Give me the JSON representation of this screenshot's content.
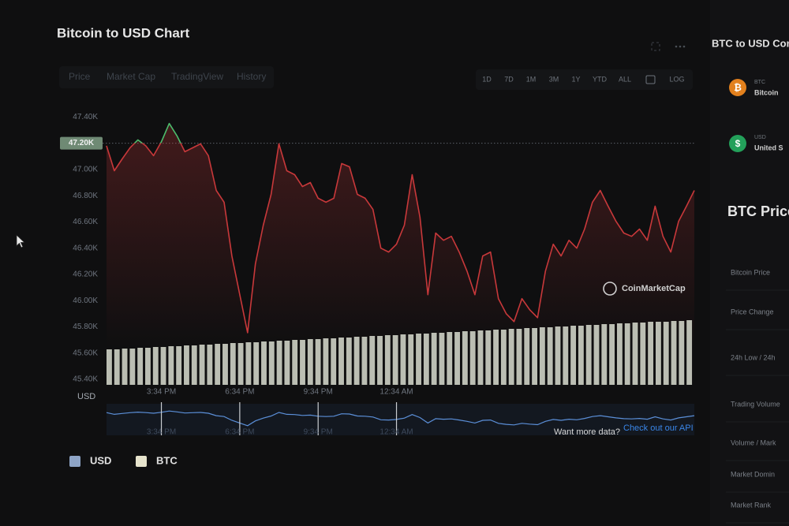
{
  "header": {
    "title": "Bitcoin to USD Chart"
  },
  "tabs": [
    "Price",
    "Market Cap",
    "TradingView",
    "History"
  ],
  "ranges": [
    "1D",
    "7D",
    "1M",
    "3M",
    "1Y",
    "YTD",
    "ALL",
    "LOG"
  ],
  "chart_data": {
    "type": "line",
    "ylabel": "USD",
    "watermark": "CoinMarketCap",
    "color": "#c8383a",
    "color_above": "#4cbc6c",
    "navigator_color": "#5b8fd8",
    "volume_color": "#d9ddd0",
    "reference": {
      "value": 47200,
      "label": "47.20K"
    },
    "ylim": [
      45400,
      47450
    ],
    "yticks": [
      {
        "value": 45400,
        "label": "45.40K"
      },
      {
        "value": 45600,
        "label": "45.60K"
      },
      {
        "value": 45800,
        "label": "45.80K"
      },
      {
        "value": 46000,
        "label": "46.00K"
      },
      {
        "value": 46200,
        "label": "46.20K"
      },
      {
        "value": 46400,
        "label": "46.40K"
      },
      {
        "value": 46600,
        "label": "46.60K"
      },
      {
        "value": 46800,
        "label": "46.80K"
      },
      {
        "value": 47000,
        "label": "47.00K"
      },
      {
        "value": 47400,
        "label": "47.40K"
      }
    ],
    "categories": [
      null,
      null,
      null,
      null,
      null,
      null,
      null,
      "3:34 PM",
      null,
      null,
      null,
      null,
      null,
      null,
      null,
      null,
      null,
      "6:34 PM",
      null,
      null,
      null,
      null,
      null,
      null,
      null,
      null,
      null,
      "9:34 PM",
      null,
      null,
      null,
      null,
      null,
      null,
      null,
      null,
      null,
      "12:34 AM",
      null,
      null,
      null,
      null,
      null,
      null,
      null,
      null,
      null,
      null,
      null,
      null,
      null,
      null,
      null,
      null,
      null,
      null,
      null,
      null,
      null,
      null,
      null,
      null,
      null,
      null,
      null,
      null,
      null,
      null,
      null,
      null,
      null,
      null,
      null,
      null,
      null,
      null
    ],
    "values": [
      47180,
      46990,
      47080,
      47165,
      47225,
      47180,
      47105,
      47210,
      47350,
      47255,
      47135,
      47165,
      47195,
      47105,
      46840,
      46750,
      46340,
      46045,
      45755,
      46280,
      46575,
      46810,
      47195,
      46990,
      46960,
      46870,
      46900,
      46780,
      46750,
      46780,
      47045,
      47020,
      46810,
      46780,
      46695,
      46400,
      46370,
      46430,
      46575,
      46960,
      46635,
      46045,
      46515,
      46460,
      46490,
      46370,
      46225,
      46045,
      46340,
      46370,
      46015,
      45900,
      45840,
      46015,
      45930,
      45870,
      46225,
      46430,
      46340,
      46460,
      46400,
      46545,
      46750,
      46840,
      46720,
      46605,
      46515,
      46490,
      46545,
      46460,
      46720,
      46490,
      46370,
      46605,
      46720,
      46840
    ],
    "volume": [
      45,
      45,
      46,
      46,
      47,
      47,
      48,
      48,
      49,
      49,
      50,
      50,
      51,
      51,
      52,
      52,
      53,
      53,
      54,
      54,
      55,
      55,
      56,
      56,
      57,
      57,
      58,
      58,
      59,
      59,
      60,
      60,
      61,
      61,
      62,
      62,
      63,
      63,
      64,
      64,
      65,
      65,
      66,
      66,
      67,
      67,
      68,
      68,
      69,
      69,
      70,
      70,
      71,
      71,
      72,
      72,
      73,
      73,
      74,
      74,
      75,
      75,
      76,
      76,
      77,
      77,
      78,
      78,
      79,
      79,
      80,
      80,
      80,
      81,
      81,
      82
    ]
  },
  "legend": [
    {
      "name": "USD",
      "color": "#8ea4c6"
    },
    {
      "name": "BTC",
      "color": "#e6e3cc"
    }
  ],
  "footer": {
    "question": "Want more data?",
    "link": "Check out our API"
  },
  "converter": {
    "title": "BTC to USD Con",
    "rows": [
      {
        "code": "BTC",
        "name": "Bitcoin"
      },
      {
        "code": "USD",
        "name": "United S"
      }
    ]
  },
  "stats": {
    "title": "BTC Price",
    "labels": [
      "Bitcoin Price",
      "Price Change",
      "24h Low / 24h",
      "Trading Volume",
      "Volume / Mark",
      "Market Domin",
      "Market Rank"
    ]
  }
}
